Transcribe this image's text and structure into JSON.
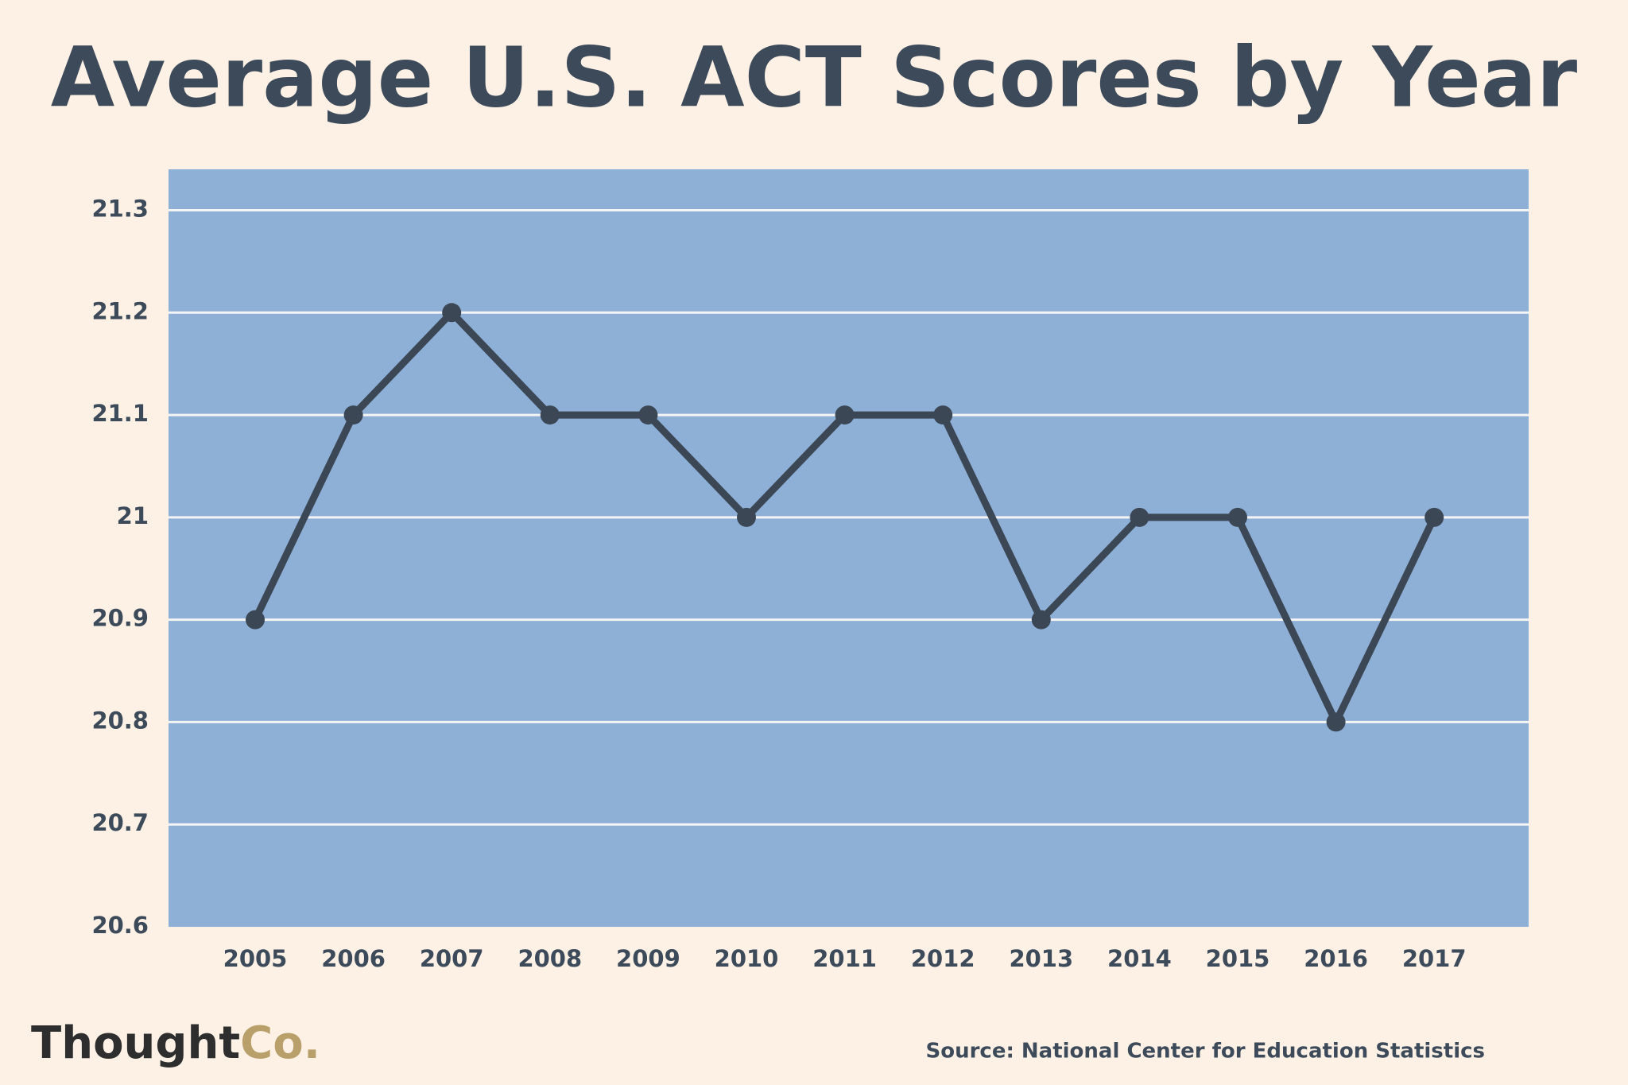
{
  "chart_data": {
    "type": "line",
    "title": "Average U.S. ACT Scores by Year",
    "categories": [
      "2005",
      "2006",
      "2007",
      "2008",
      "2009",
      "2010",
      "2011",
      "2012",
      "2013",
      "2014",
      "2015",
      "2016",
      "2017"
    ],
    "series": [
      {
        "color": "#3c4756",
        "values": [
          20.9,
          21.1,
          21.2,
          21.1,
          21.1,
          21.0,
          21.1,
          21.1,
          20.9,
          21.0,
          21.0,
          20.8,
          21.0
        ]
      }
    ],
    "ylim": [
      20.6,
      21.34
    ],
    "yticks": [
      20.6,
      20.7,
      20.8,
      20.9,
      21,
      21.1,
      21.2,
      21.3
    ],
    "grid": true,
    "source": "Source: National Center for Education Statistics",
    "logo": [
      "Thought",
      "Co."
    ]
  }
}
